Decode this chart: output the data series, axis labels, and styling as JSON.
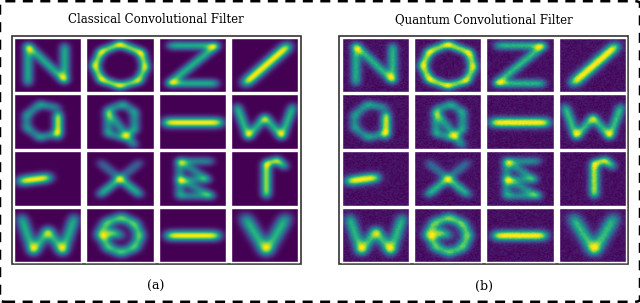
{
  "title_left": "Classical Convolutional Filter",
  "title_right": "Quantum Convolutional Filter",
  "label_left": "(a)",
  "label_right": "(b)",
  "fig_width": 6.4,
  "fig_height": 3.03,
  "bg_color": "#ffffff",
  "cmap": "viridis",
  "title_fontsize": 8.5,
  "label_fontsize": 9
}
